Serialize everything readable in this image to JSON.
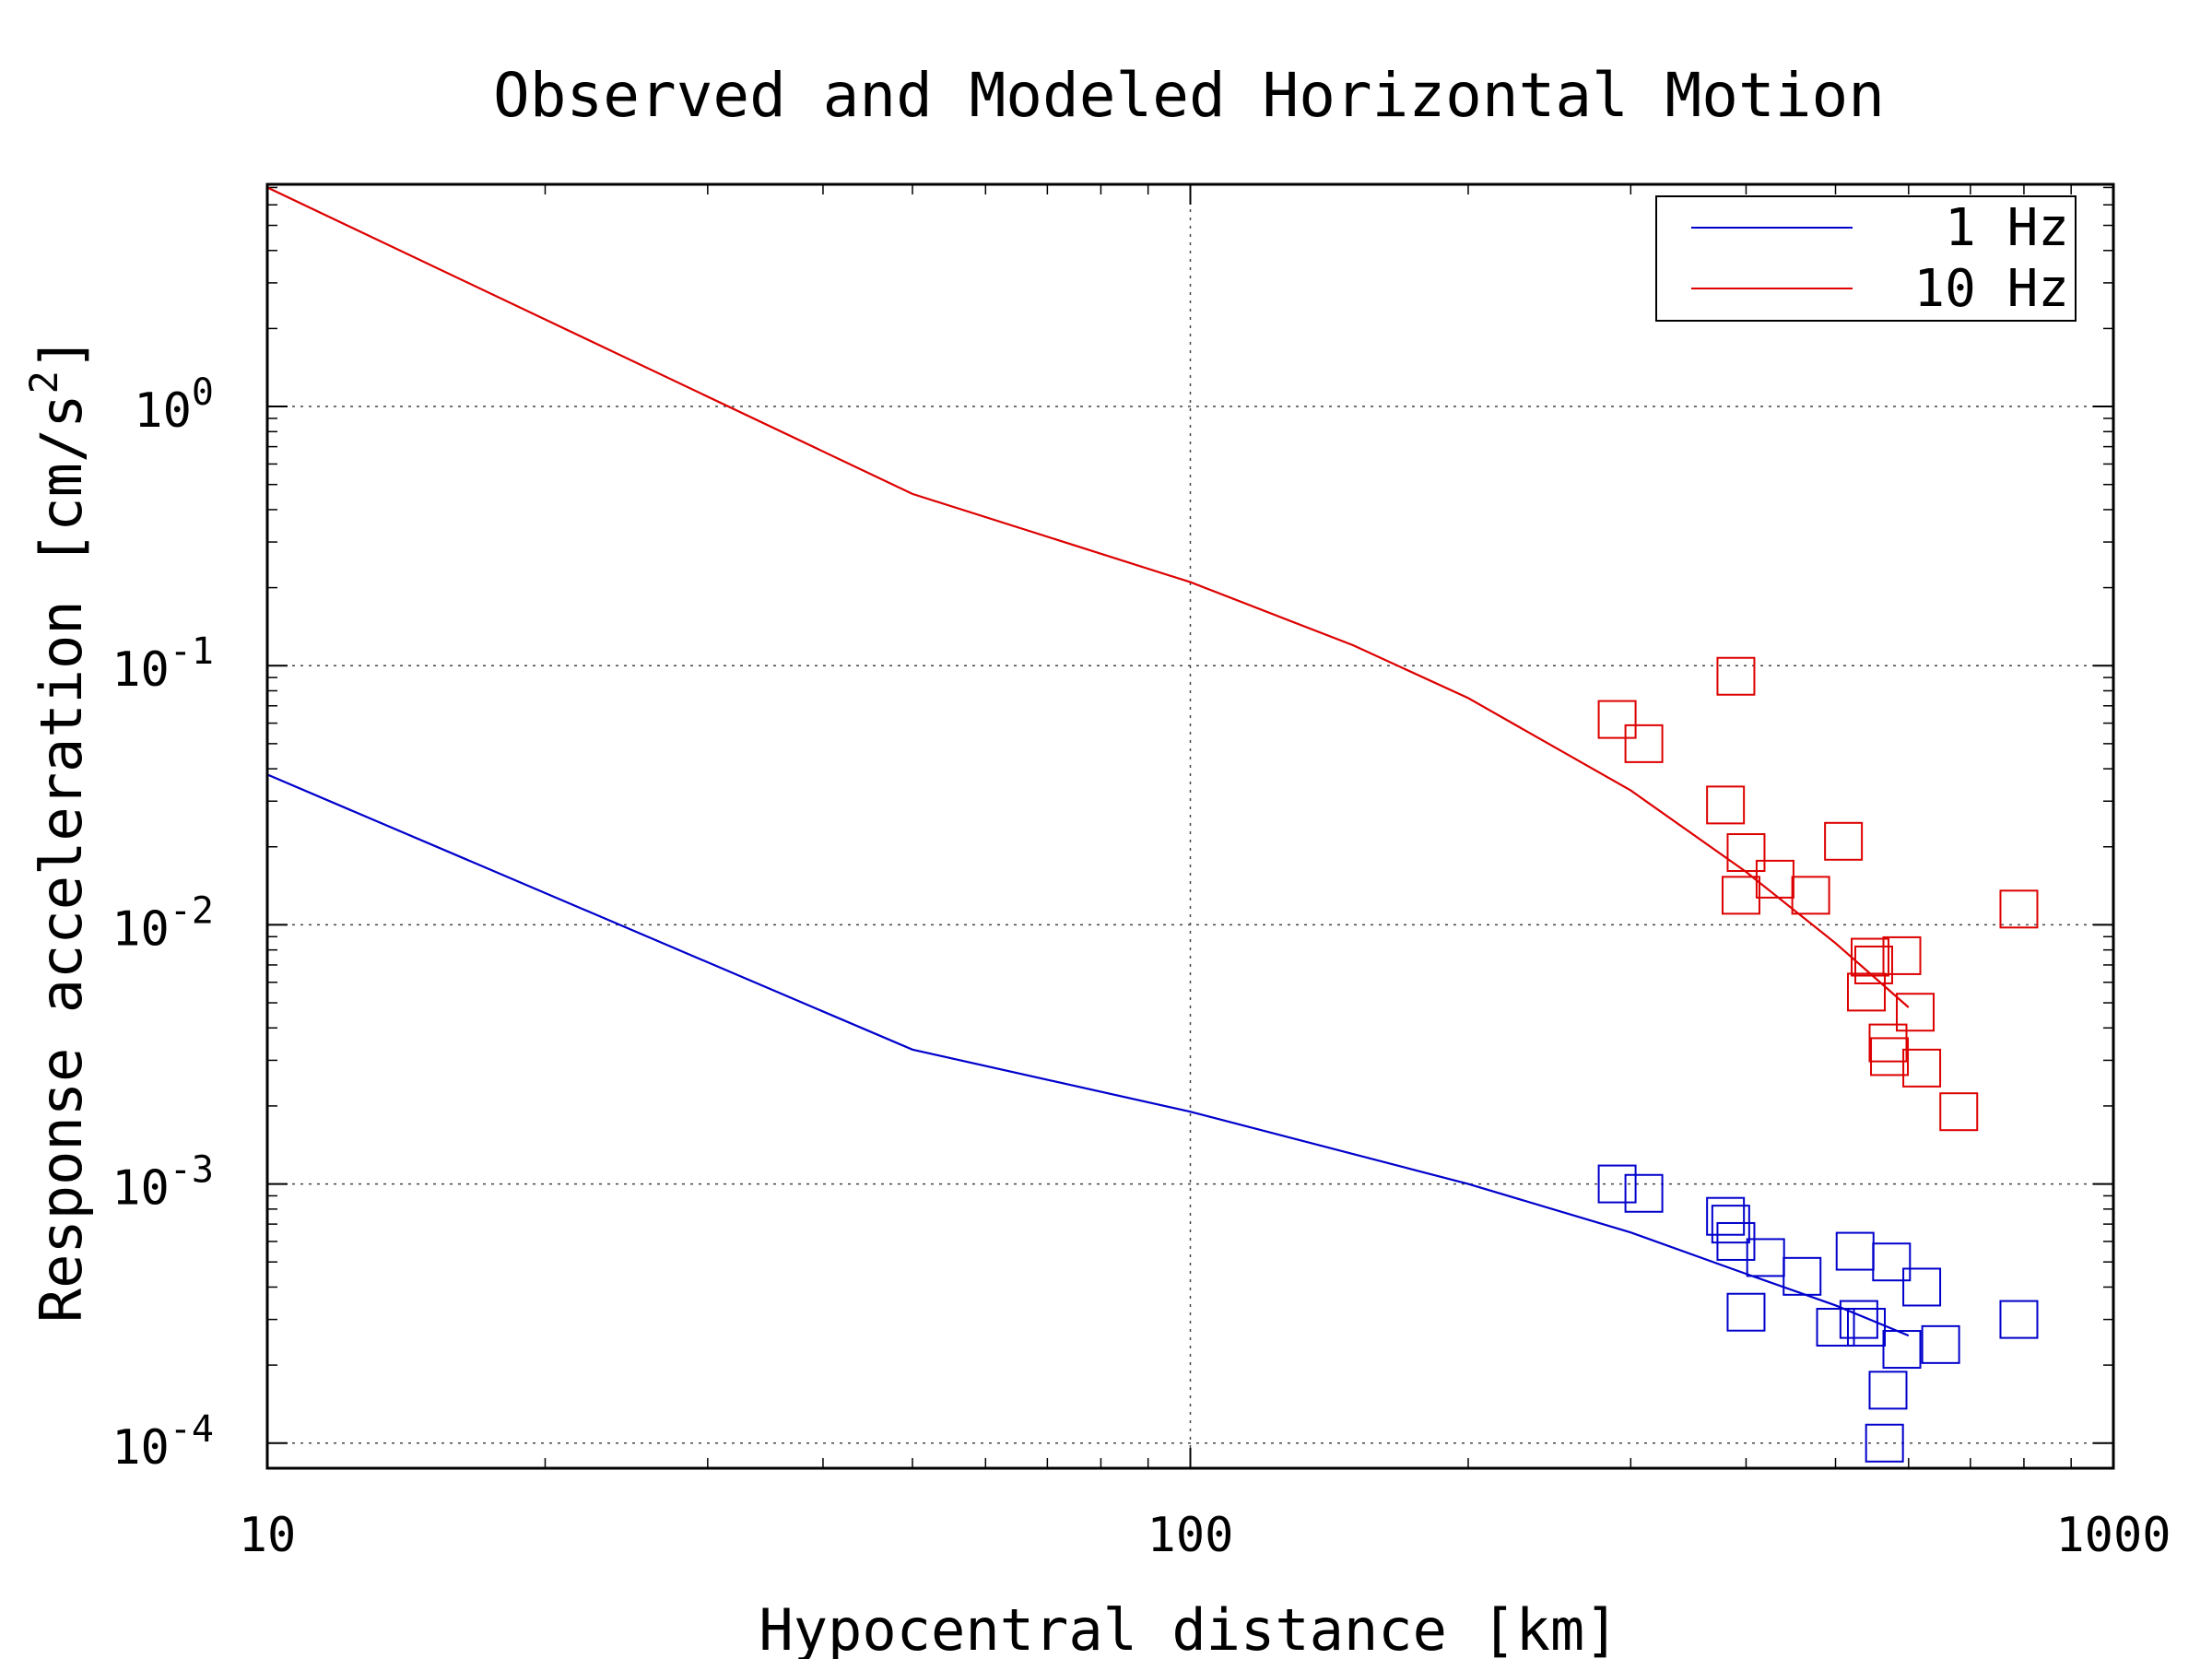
{
  "chart_data": {
    "type": "line",
    "title": "Observed and Modeled Horizontal Motion",
    "xlabel": "Hypocentral distance [km]",
    "ylabel": {
      "main": "Response acceleration [cm/s",
      "sup": "2",
      "close": "]"
    },
    "xscale": "log",
    "yscale": "log",
    "xlim": [
      10,
      1000
    ],
    "ylim": [
      8e-05,
      7.2
    ],
    "x_ticks": [
      {
        "value": 10,
        "label": "10"
      },
      {
        "value": 100,
        "label": "100"
      },
      {
        "value": 1000,
        "label": "1000"
      }
    ],
    "y_ticks": [
      {
        "value": 1,
        "base": "10",
        "exp": "0"
      },
      {
        "value": 0.1,
        "base": "10",
        "exp": "-1"
      },
      {
        "value": 0.01,
        "base": "10",
        "exp": "-2"
      },
      {
        "value": 0.001,
        "base": "10",
        "exp": "-3"
      },
      {
        "value": 0.0001,
        "base": "10",
        "exp": "-4"
      }
    ],
    "grid": true,
    "legend_position": "top-right",
    "series": [
      {
        "name": "1 Hz",
        "color": "#0000cc",
        "model_line": [
          [
            10,
            0.038
          ],
          [
            50,
            0.0033
          ],
          [
            100,
            0.0019
          ],
          [
            200,
            0.001
          ],
          [
            300,
            0.00065
          ],
          [
            400,
            0.00045
          ],
          [
            500,
            0.00034
          ],
          [
            600,
            0.00026
          ]
        ],
        "observed": [
          [
            290,
            0.001
          ],
          [
            310,
            0.00092
          ],
          [
            380,
            0.00075
          ],
          [
            385,
            0.0007
          ],
          [
            390,
            0.0006
          ],
          [
            400,
            0.00032
          ],
          [
            420,
            0.00052
          ],
          [
            460,
            0.00044
          ],
          [
            500,
            0.00028
          ],
          [
            525,
            0.00055
          ],
          [
            530,
            0.0003
          ],
          [
            540,
            0.00028
          ],
          [
            570,
            0.00016
          ],
          [
            565,
            0.0001
          ],
          [
            575,
            0.0005
          ],
          [
            590,
            0.00023
          ],
          [
            620,
            0.0004
          ],
          [
            650,
            0.00024
          ],
          [
            790,
            0.0003
          ]
        ]
      },
      {
        "name": "10 Hz",
        "color": "#dd0000",
        "model_line": [
          [
            10,
            7.0
          ],
          [
            50,
            0.46
          ],
          [
            100,
            0.21
          ],
          [
            150,
            0.12
          ],
          [
            200,
            0.075
          ],
          [
            300,
            0.033
          ],
          [
            400,
            0.016
          ],
          [
            500,
            0.0085
          ],
          [
            600,
            0.0048
          ]
        ],
        "observed": [
          [
            290,
            0.062
          ],
          [
            310,
            0.05
          ],
          [
            380,
            0.029
          ],
          [
            390,
            0.091
          ],
          [
            400,
            0.019
          ],
          [
            395,
            0.013
          ],
          [
            430,
            0.015
          ],
          [
            470,
            0.013
          ],
          [
            510,
            0.021
          ],
          [
            540,
            0.0055
          ],
          [
            545,
            0.0075
          ],
          [
            550,
            0.007
          ],
          [
            570,
            0.0035
          ],
          [
            572,
            0.0031
          ],
          [
            590,
            0.0076
          ],
          [
            610,
            0.0046
          ],
          [
            620,
            0.0028
          ],
          [
            680,
            0.0019
          ],
          [
            790,
            0.0115
          ]
        ]
      }
    ]
  }
}
